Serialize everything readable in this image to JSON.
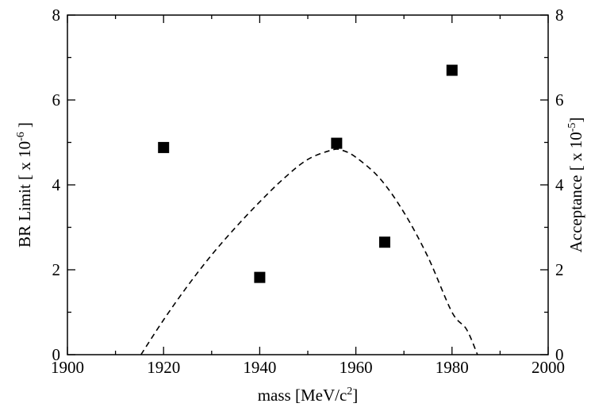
{
  "chart_data": {
    "type": "scatter",
    "xlabel": {
      "main": "mass [MeV/c",
      "sup": "2",
      "tail": "]"
    },
    "ylabel_left": {
      "main": "BR Limit  [ x 10",
      "sup": "-6",
      "tail": " ]"
    },
    "ylabel_right": {
      "main": "Acceptance  [ x 10",
      "sup": "-5",
      "tail": "]"
    },
    "xlim": [
      1900,
      2000
    ],
    "ylim": [
      0,
      8
    ],
    "y2lim": [
      0,
      8
    ],
    "x_ticks": [
      1900,
      1920,
      1940,
      1960,
      1980,
      2000
    ],
    "x_minor_ticks": [
      1910,
      1930,
      1950,
      1970,
      1990
    ],
    "y_ticks": [
      0,
      2,
      4,
      6,
      8
    ],
    "y_minor_ticks": [
      1,
      3,
      5,
      7
    ],
    "grid": false,
    "series": [
      {
        "kind": "scatter",
        "marker": "square",
        "color": "#000000",
        "x": [
          1920,
          1940,
          1956,
          1966,
          1980
        ],
        "y": [
          4.88,
          1.82,
          4.98,
          2.65,
          6.7
        ]
      },
      {
        "kind": "line",
        "style": "dashed",
        "color": "#000000",
        "axis": "right",
        "x": [
          1915.3,
          1920,
          1925,
          1930,
          1935,
          1940,
          1945,
          1950,
          1955,
          1957,
          1960,
          1965,
          1970,
          1975,
          1980,
          1983,
          1985.3
        ],
        "y": [
          0,
          0.82,
          1.62,
          2.35,
          3.0,
          3.6,
          4.15,
          4.6,
          4.82,
          4.82,
          4.65,
          4.15,
          3.35,
          2.3,
          1.0,
          0.6,
          0
        ]
      }
    ]
  }
}
